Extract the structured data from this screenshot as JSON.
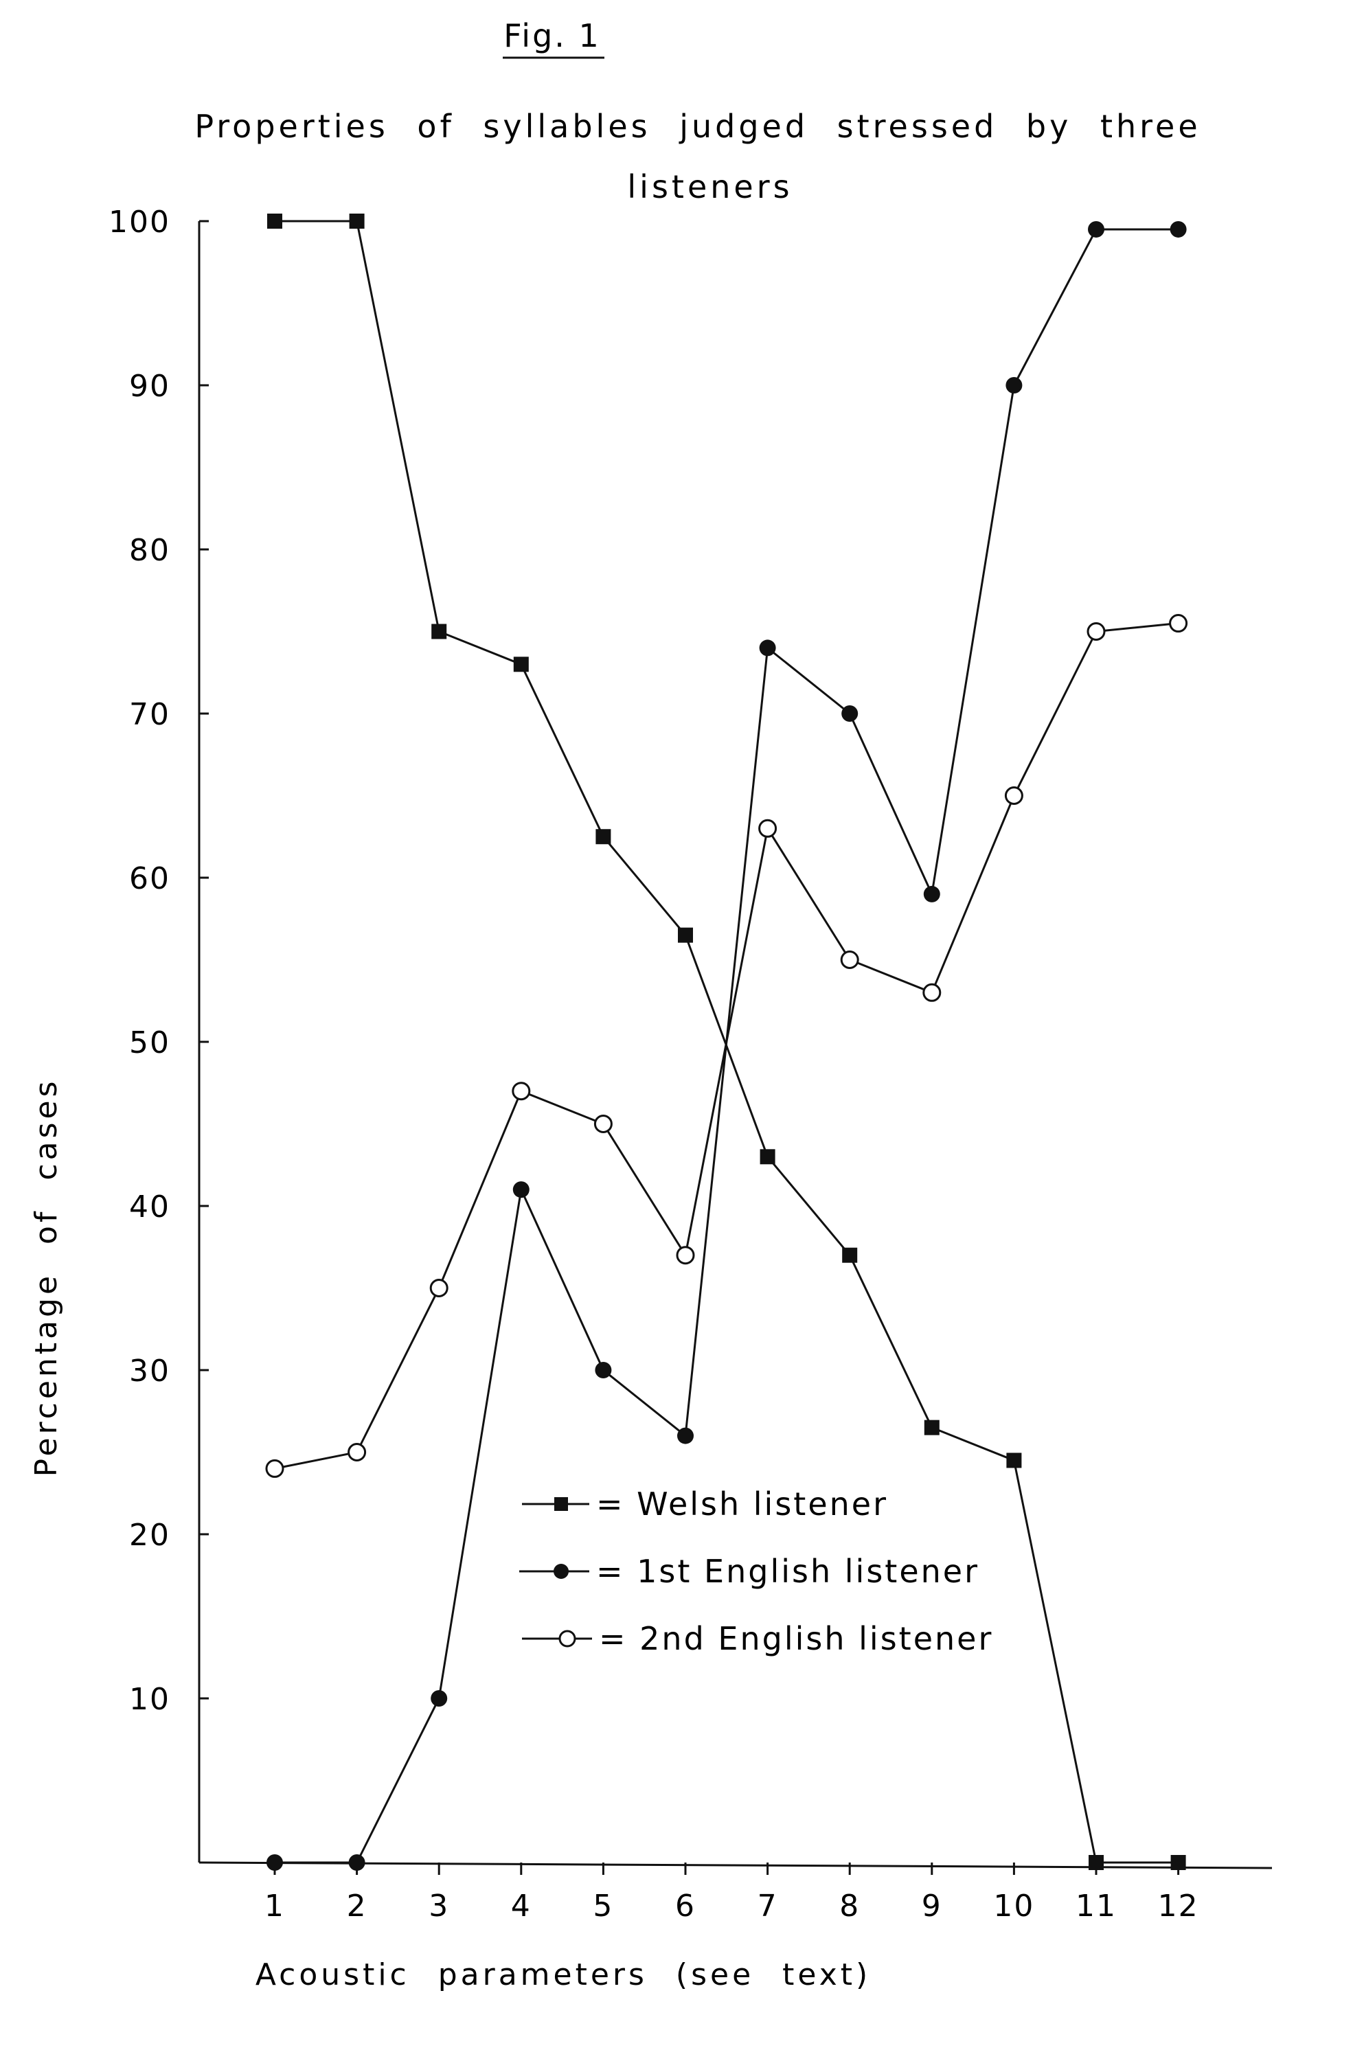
{
  "figure": {
    "label": "Fig. 1"
  },
  "chart_data": {
    "type": "line",
    "title_lines": [
      "Properties of syllables judged stressed by three",
      "listeners"
    ],
    "xlabel": "Acoustic parameters (see text)",
    "ylabel": "Percentage of cases",
    "x": [
      1,
      2,
      3,
      4,
      5,
      6,
      7,
      8,
      9,
      10,
      11,
      12
    ],
    "x_tick_labels": [
      "1",
      "2",
      "3",
      "4",
      "5",
      "6",
      "7",
      "8",
      "9",
      "10",
      "11",
      "12"
    ],
    "y_ticks": [
      10,
      20,
      30,
      40,
      50,
      60,
      70,
      80,
      90,
      100
    ],
    "y_tick_labels": [
      "10",
      "20",
      "30",
      "40",
      "50",
      "60",
      "70",
      "80",
      "90",
      "100"
    ],
    "ylim": [
      0,
      100
    ],
    "xlim": [
      0,
      13
    ],
    "grid": false,
    "legend_position": "center",
    "series": [
      {
        "name": "= Welsh listener",
        "marker": "square-filled",
        "values": [
          100,
          100,
          75,
          73,
          62.5,
          56.5,
          43,
          37,
          26.5,
          24.5,
          0,
          0
        ]
      },
      {
        "name": "= 1st English listener",
        "marker": "circle-filled",
        "values": [
          0,
          0,
          10,
          41,
          30,
          26,
          74,
          70,
          59,
          90,
          99.5,
          99.5
        ]
      },
      {
        "name": "= 2nd English listener",
        "marker": "circle-open",
        "values": [
          24,
          25,
          35,
          47,
          45,
          37,
          63,
          55,
          53,
          65,
          75,
          75.5
        ]
      }
    ]
  }
}
